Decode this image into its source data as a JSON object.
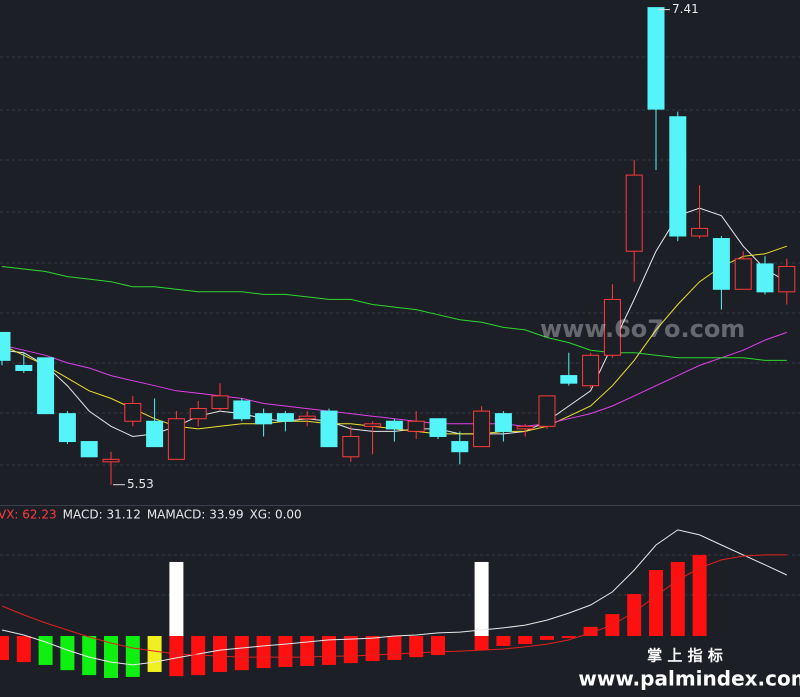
{
  "chart_data": [
    {
      "type": "candlestick",
      "open": [
        6.13,
        6.0,
        6.03,
        5.81,
        5.7,
        5.62,
        5.78,
        5.78,
        5.63,
        5.79,
        5.83,
        5.86,
        5.81,
        5.81,
        5.79,
        5.82,
        5.64,
        5.76,
        5.78,
        5.74,
        5.79,
        5.7,
        5.68,
        5.81,
        5.75,
        5.76,
        5.96,
        5.92,
        6.04,
        6.45,
        7.41,
        6.98,
        6.51,
        6.5,
        6.3,
        6.4,
        6.29
      ],
      "high": [
        6.13,
        6.05,
        6.03,
        5.82,
        5.7,
        5.66,
        5.88,
        5.87,
        5.82,
        5.86,
        5.93,
        5.87,
        5.83,
        5.82,
        5.82,
        5.83,
        5.76,
        5.78,
        5.79,
        5.82,
        5.79,
        5.74,
        5.84,
        5.82,
        5.77,
        5.88,
        6.05,
        6.05,
        6.32,
        6.81,
        7.41,
        7.0,
        6.71,
        6.51,
        6.45,
        6.43,
        6.42
      ],
      "low": [
        6.0,
        5.97,
        5.81,
        5.69,
        5.64,
        5.53,
        5.76,
        5.68,
        5.63,
        5.76,
        5.82,
        5.78,
        5.72,
        5.74,
        5.76,
        5.68,
        5.62,
        5.65,
        5.7,
        5.71,
        5.71,
        5.61,
        5.68,
        5.7,
        5.72,
        5.75,
        5.92,
        5.91,
        6.03,
        6.33,
        6.77,
        6.49,
        6.5,
        6.22,
        6.3,
        6.28,
        6.24
      ],
      "close": [
        6.02,
        5.98,
        5.81,
        5.7,
        5.64,
        5.63,
        5.85,
        5.68,
        5.79,
        5.83,
        5.88,
        5.79,
        5.77,
        5.78,
        5.8,
        5.68,
        5.72,
        5.77,
        5.75,
        5.78,
        5.72,
        5.66,
        5.82,
        5.74,
        5.76,
        5.88,
        5.93,
        6.04,
        6.26,
        6.75,
        7.01,
        6.51,
        6.54,
        6.3,
        6.42,
        6.29,
        6.39
      ],
      "up_color": "#ff3b3b",
      "down_color": "#54f4f8",
      "ylim": [
        5.45,
        7.44
      ],
      "series": [
        {
          "color": "#e8e8e8",
          "values": [
            6.06,
            6.05,
            6.0,
            5.92,
            5.82,
            5.76,
            5.72,
            5.73,
            5.76,
            5.8,
            5.82,
            5.81,
            5.79,
            5.78,
            5.79,
            5.78,
            5.75,
            5.74,
            5.74,
            5.75,
            5.75,
            5.73,
            5.73,
            5.73,
            5.74,
            5.78,
            5.84,
            5.9,
            6.08,
            6.26,
            6.45,
            6.59,
            6.62,
            6.59,
            6.47,
            6.38,
            6.33
          ]
        },
        {
          "color": "#f0e030",
          "values": [
            6.08,
            6.04,
            6.0,
            5.95,
            5.9,
            5.87,
            5.83,
            5.79,
            5.76,
            5.75,
            5.76,
            5.77,
            5.77,
            5.78,
            5.78,
            5.77,
            5.77,
            5.76,
            5.75,
            5.74,
            5.73,
            5.73,
            5.73,
            5.74,
            5.74,
            5.76,
            5.8,
            5.84,
            5.92,
            6.02,
            6.14,
            6.24,
            6.33,
            6.39,
            6.43,
            6.44,
            6.47
          ]
        },
        {
          "color": "#e040e8",
          "values": [
            6.08,
            6.06,
            6.04,
            6.01,
            5.99,
            5.96,
            5.94,
            5.92,
            5.9,
            5.89,
            5.88,
            5.87,
            5.85,
            5.84,
            5.83,
            5.82,
            5.81,
            5.8,
            5.79,
            5.78,
            5.77,
            5.77,
            5.77,
            5.77,
            5.76,
            5.77,
            5.79,
            5.81,
            5.84,
            5.88,
            5.92,
            5.96,
            6.0,
            6.03,
            6.06,
            6.1,
            6.13
          ]
        },
        {
          "color": "#2ed82e",
          "values": [
            6.39,
            6.38,
            6.37,
            6.35,
            6.34,
            6.33,
            6.31,
            6.31,
            6.3,
            6.29,
            6.29,
            6.29,
            6.28,
            6.28,
            6.27,
            6.26,
            6.26,
            6.24,
            6.23,
            6.22,
            6.2,
            6.18,
            6.17,
            6.15,
            6.14,
            6.11,
            6.09,
            6.06,
            6.05,
            6.05,
            6.04,
            6.03,
            6.03,
            6.03,
            6.03,
            6.02,
            6.02
          ]
        }
      ],
      "watermark": "www.6o7o.com"
    },
    {
      "type": "macd",
      "legend": [
        {
          "text": "VX: 62.23",
          "color": "#ff3b3b"
        },
        {
          "text": "MACD: 31.12",
          "color": "#e8e8e8"
        },
        {
          "text": "MAMACD: 33.99",
          "color": "#e8e8e8"
        },
        {
          "text": "XG: 0.00",
          "color": "#e8e8e8"
        }
      ],
      "values": [
        -9.2,
        -10.0,
        -11.1,
        -13.1,
        -15.0,
        -16.1,
        -15.7,
        -13.8,
        -15.4,
        -15.0,
        -13.8,
        -13.1,
        -12.3,
        -11.9,
        -11.5,
        -11.1,
        -10.4,
        -9.6,
        -9.2,
        -8.1,
        -7.3,
        null,
        -5.4,
        -3.8,
        -3.1,
        -1.5,
        -0.8,
        3.5,
        8.4,
        16.1,
        25.3,
        28.4,
        31.12,
        null,
        null,
        null,
        null
      ],
      "colors": [
        "#ff1010",
        "#ff1010",
        "#10f010",
        "#10f010",
        "#10f010",
        "#10f010",
        "#10f010",
        "#f0f020",
        "#ff1010",
        "#ff1010",
        "#ff1010",
        "#ff1010",
        "#ff1010",
        "#ff1010",
        "#ff1010",
        "#ff1010",
        "#ff1010",
        "#ff1010",
        "#ff1010",
        "#ff1010",
        "#ff1010",
        null,
        "#ff1010",
        "#ff1010",
        "#ff1010",
        "#ff1010",
        "#ff1010",
        "#ff1010",
        "#ff1010",
        "#ff1010",
        "#ff1010",
        "#ff1010",
        "#ff1010",
        null,
        null,
        null,
        null
      ],
      "signals": {
        "color": "#ffffff",
        "values": [
          null,
          null,
          null,
          null,
          null,
          null,
          null,
          null,
          28.4,
          null,
          null,
          null,
          null,
          null,
          null,
          null,
          null,
          null,
          null,
          null,
          null,
          null,
          28.4,
          null,
          null,
          null,
          null,
          null,
          null,
          null,
          null,
          null,
          null,
          null,
          null,
          null,
          null
        ]
      },
      "series": [
        {
          "color": "#e8e8e8",
          "values": [
            2.3,
            0.4,
            -2.3,
            -5.4,
            -8.1,
            -10.0,
            -11.1,
            -10.0,
            -8.4,
            -6.9,
            -5.4,
            -4.6,
            -3.8,
            -3.1,
            -2.3,
            -1.5,
            -1.2,
            -0.8,
            0,
            0.4,
            1.2,
            1.5,
            2.3,
            3.1,
            4.2,
            6.1,
            8.8,
            11.9,
            16.9,
            25.3,
            34.9,
            40.7,
            38.8,
            34.9,
            31.1,
            27.3,
            23.4
          ]
        },
        {
          "color": "#e02020",
          "values": [
            11.5,
            8.1,
            5.0,
            2.3,
            -0.4,
            -2.7,
            -4.6,
            -5.8,
            -6.9,
            -7.3,
            -7.7,
            -8.1,
            -8.1,
            -8.1,
            -8.1,
            -7.7,
            -7.7,
            -7.3,
            -6.9,
            -6.5,
            -6.1,
            -5.8,
            -5.4,
            -5.0,
            -4.2,
            -3.1,
            -1.5,
            1.2,
            4.2,
            9.2,
            15.4,
            21.5,
            26.1,
            29.2,
            30.7,
            31.1,
            31.1
          ]
        }
      ],
      "ylim": [
        -23.4,
        44.5
      ]
    }
  ],
  "watermark": {
    "title": "掌 上 指 标",
    "url": "www.palmindex.com"
  }
}
